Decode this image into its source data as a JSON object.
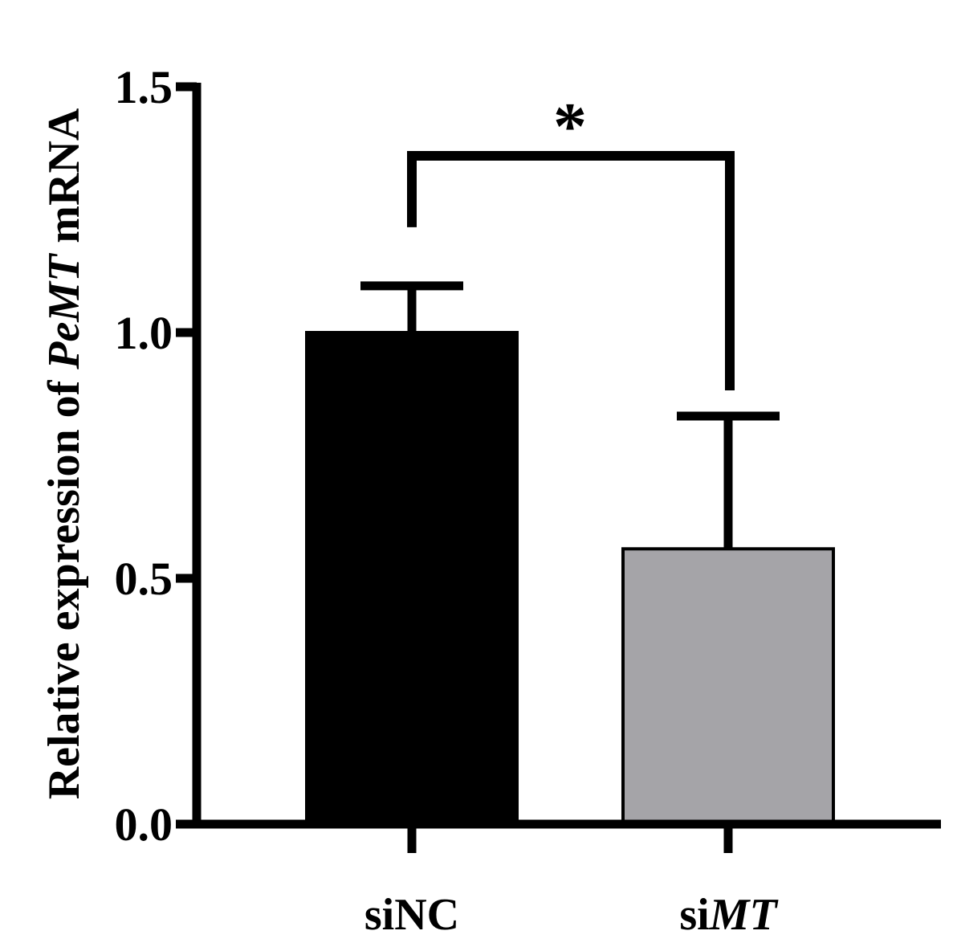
{
  "chart_data": {
    "type": "bar",
    "categories": [
      {
        "prefix": "si",
        "italic": "",
        "suffix": "NC"
      },
      {
        "prefix": "si",
        "italic": "MT",
        "suffix": ""
      }
    ],
    "values": [
      1.0,
      0.56
    ],
    "errors": [
      0.095,
      0.27
    ],
    "ylim": [
      0,
      1.5
    ],
    "yticks": [
      0.0,
      0.5,
      1.0,
      1.5
    ],
    "ytick_labels": [
      "0.0",
      "0.5",
      "1.0",
      "1.5"
    ],
    "ylabel": {
      "before": "Relative expression of ",
      "italic": "PeMT",
      "after": " mRNA"
    },
    "xlabel": "",
    "title": "",
    "significance": {
      "label": "*",
      "between": [
        0,
        1
      ]
    },
    "colors": {
      "bars": [
        "#000000",
        "#a5a4a8"
      ],
      "axis": "#000000",
      "bar_edge": "#000000"
    },
    "grid": false,
    "legend": "none"
  }
}
